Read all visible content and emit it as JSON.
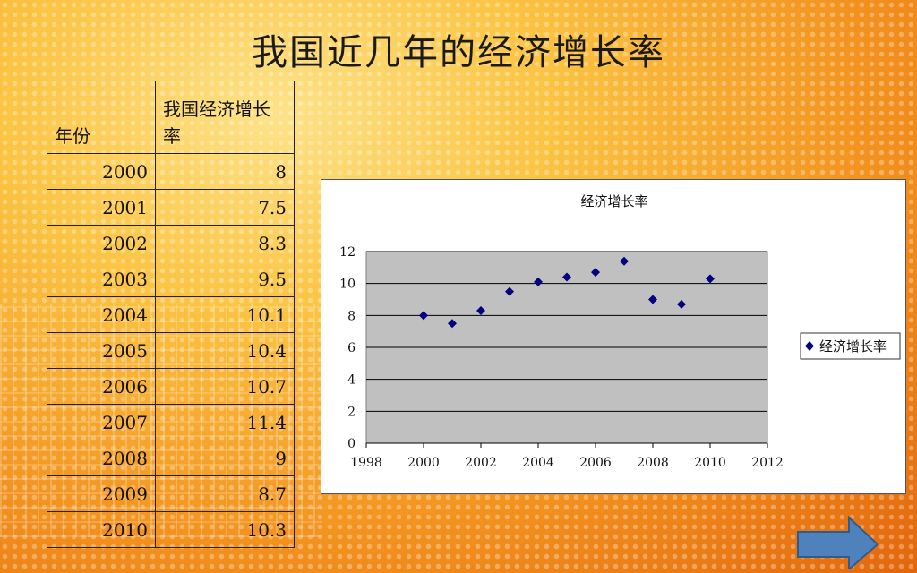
{
  "title": "我国近几年的经济增长率",
  "table": {
    "headers": [
      "年份",
      "我国经济增长率"
    ],
    "rows": [
      [
        "2000",
        "8"
      ],
      [
        "2001",
        "7.5"
      ],
      [
        "2002",
        "8.3"
      ],
      [
        "2003",
        "9.5"
      ],
      [
        "2004",
        "10.1"
      ],
      [
        "2005",
        "10.4"
      ],
      [
        "2006",
        "10.7"
      ],
      [
        "2007",
        "11.4"
      ],
      [
        "2008",
        "9"
      ],
      [
        "2009",
        "8.7"
      ],
      [
        "2010",
        "10.3"
      ]
    ]
  },
  "chart_data": {
    "type": "scatter",
    "title": "经济增长率",
    "x": [
      2000,
      2001,
      2002,
      2003,
      2004,
      2005,
      2006,
      2007,
      2008,
      2009,
      2010
    ],
    "series": [
      {
        "name": "经济增长率",
        "values": [
          8,
          7.5,
          8.3,
          9.5,
          10.1,
          10.4,
          10.7,
          11.4,
          9,
          8.7,
          10.3
        ]
      }
    ],
    "xlim": [
      1998,
      2012
    ],
    "ylim": [
      0,
      12
    ],
    "xticks": [
      1998,
      2000,
      2002,
      2004,
      2006,
      2008,
      2010,
      2012
    ],
    "yticks": [
      0,
      2,
      4,
      6,
      8,
      10,
      12
    ],
    "grid": "horizontal",
    "legend": "right",
    "plot_background": "#c0c0c0",
    "marker_color": "#000080"
  },
  "nav": {
    "arrow_color": "#4f81bd",
    "icon": "right-arrow-icon"
  }
}
